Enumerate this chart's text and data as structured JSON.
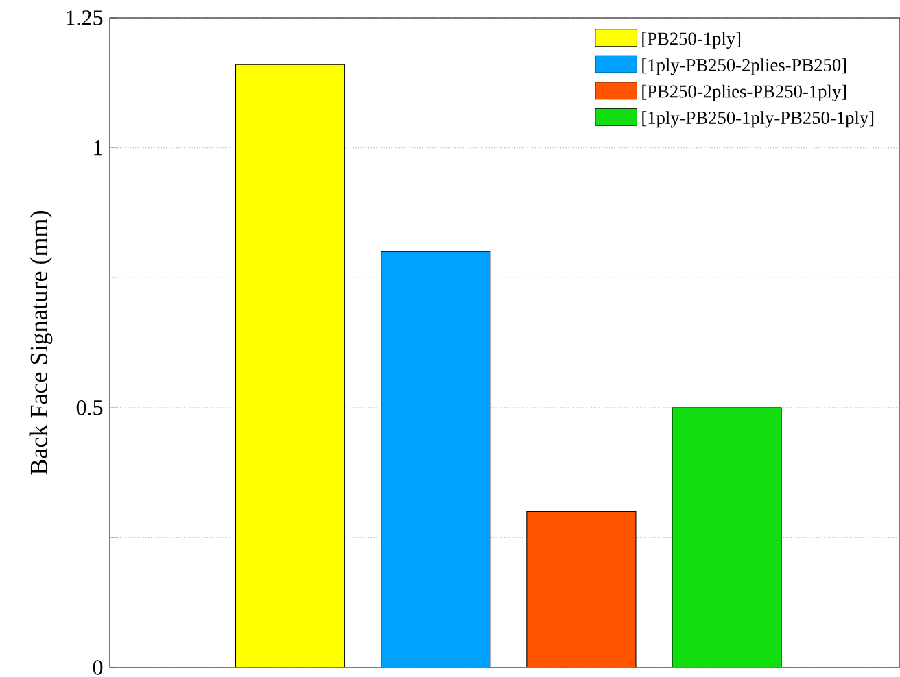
{
  "chart_data": {
    "type": "bar",
    "ylabel": "Back Face Signature (mm)",
    "categories": [
      null,
      null,
      null,
      null
    ],
    "series": [
      {
        "name": "[PB250-1ply]",
        "color": "#ffff00",
        "values": [
          1.16,
          null,
          null,
          null
        ]
      },
      {
        "name": "[1ply-PB250-2plies-PB250]",
        "color": "#00a2ff",
        "values": [
          null,
          0.8,
          null,
          null
        ]
      },
      {
        "name": "[PB250-2plies-PB250-1ply]",
        "color": "#ff5500",
        "values": [
          null,
          null,
          0.3,
          null
        ]
      },
      {
        "name": "[1ply-PB250-1ply-PB250-1ply]",
        "color": "#11dd11",
        "values": [
          null,
          null,
          null,
          0.5
        ]
      }
    ],
    "ylim": [
      0,
      1.25
    ],
    "yticks": [
      0,
      {
        "value": 0.25,
        "label": null
      },
      0.5,
      {
        "value": 0.75,
        "label": null
      },
      1,
      1.25
    ],
    "grid": "y",
    "legend": "top right"
  }
}
